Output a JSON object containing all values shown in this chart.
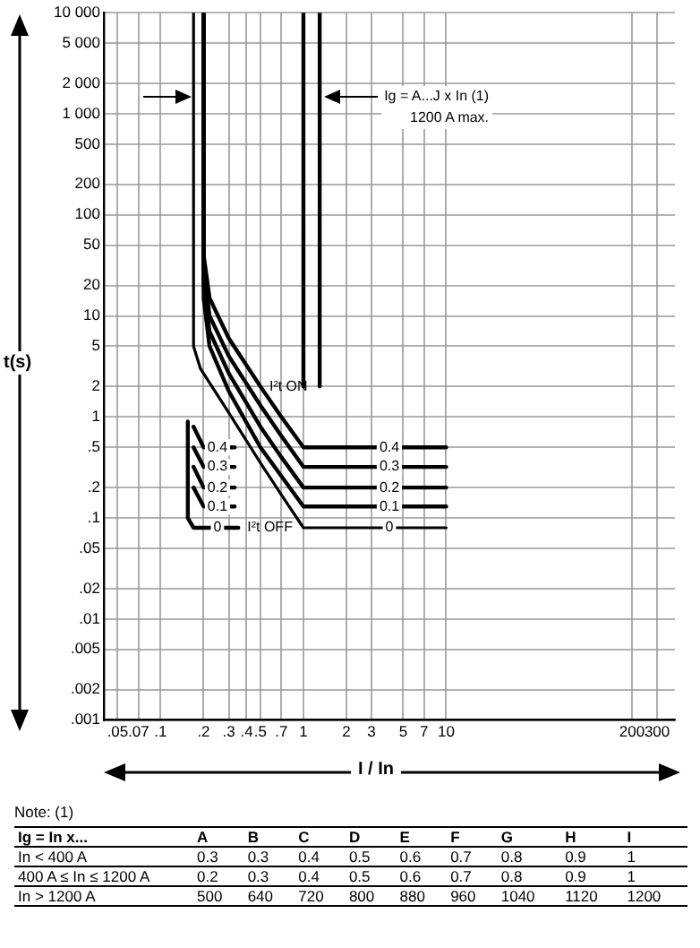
{
  "chart_data": {
    "type": "line",
    "xlabel": "I / In",
    "ylabel": "t(s)",
    "log": "xy",
    "grid": true,
    "legend": false,
    "marker": "none",
    "line_style": "solid",
    "xlim": [
      0.04,
      400
    ],
    "ylim": [
      0.001,
      10000
    ],
    "xticks": [
      {
        "value": 0.05,
        "label": ".05"
      },
      {
        "value": 0.07,
        "label": ".07"
      },
      {
        "value": 0.1,
        "label": ".1"
      },
      {
        "value": 0.2,
        "label": ".2"
      },
      {
        "value": 0.3,
        "label": ".3"
      },
      {
        "value": 0.4,
        "label": ".4"
      },
      {
        "value": 0.5,
        "label": ".5"
      },
      {
        "value": 0.7,
        "label": ".7"
      },
      1,
      2,
      3,
      5,
      7,
      10,
      200,
      300
    ],
    "yticks": [
      {
        "value": 0.001,
        "label": ".001"
      },
      {
        "value": 0.002,
        "label": ".002"
      },
      {
        "value": 0.005,
        "label": ".005"
      },
      {
        "value": 0.01,
        "label": ".01"
      },
      {
        "value": 0.02,
        "label": ".02"
      },
      {
        "value": 0.05,
        "label": ".05"
      },
      {
        "value": 0.1,
        "label": ".1"
      },
      {
        "value": 0.2,
        "label": ".2"
      },
      {
        "value": 0.5,
        "label": ".5"
      },
      1,
      2,
      5,
      10,
      20,
      50,
      100,
      200,
      500,
      {
        "value": 1000,
        "label": "1 000"
      },
      {
        "value": 2000,
        "label": "2 000"
      },
      {
        "value": 5000,
        "label": "5 000"
      },
      {
        "value": 10000,
        "label": "10 000"
      }
    ],
    "series": [
      {
        "color": "#000000",
        "x": [
          0.2,
          0.2,
          0.22,
          0.3,
          0.5,
          0.7,
          1,
          10
        ],
        "values": [
          10000,
          40,
          15,
          6,
          2,
          1,
          0.5,
          0.5
        ]
      },
      {
        "color": "#000000",
        "x": [
          0.2,
          0.2,
          0.22,
          0.3,
          0.5,
          0.7,
          1,
          10
        ],
        "values": [
          10000,
          30,
          10,
          4,
          1.3,
          0.65,
          0.32,
          0.32
        ]
      },
      {
        "color": "#000000",
        "x": [
          0.2,
          0.2,
          0.22,
          0.3,
          0.5,
          0.7,
          1,
          10
        ],
        "values": [
          10000,
          20,
          7,
          2.7,
          0.8,
          0.4,
          0.2,
          0.2
        ]
      },
      {
        "color": "#000000",
        "x": [
          0.2,
          0.2,
          0.22,
          0.3,
          0.5,
          0.7,
          1,
          10
        ],
        "values": [
          10000,
          15,
          5,
          1.8,
          0.5,
          0.26,
          0.13,
          0.13
        ]
      },
      {
        "color": "#000000",
        "x": [
          0.17,
          0.17,
          0.19,
          0.3,
          0.5,
          0.7,
          1,
          10
        ],
        "values": [
          10000,
          5,
          3,
          1.1,
          0.35,
          0.17,
          0.08,
          0.08
        ]
      },
      {
        "color": "#000000",
        "x": [
          1,
          1
        ],
        "values": [
          10000,
          2
        ]
      },
      {
        "color": "#000000",
        "x": [
          1.3,
          1.3
        ],
        "values": [
          10000,
          2
        ]
      },
      {
        "color": "#000000",
        "x": [
          0.17,
          0.2,
          0.33
        ],
        "values": [
          0.8,
          0.5,
          0.5
        ]
      },
      {
        "color": "#000000",
        "x": [
          0.17,
          0.2,
          0.33
        ],
        "values": [
          0.5,
          0.32,
          0.32
        ]
      },
      {
        "color": "#000000",
        "x": [
          0.17,
          0.2,
          0.33
        ],
        "values": [
          0.32,
          0.2,
          0.2
        ]
      },
      {
        "color": "#000000",
        "x": [
          0.17,
          0.2,
          0.33
        ],
        "values": [
          0.2,
          0.13,
          0.13
        ]
      },
      {
        "color": "#000000",
        "x": [
          0.155,
          0.155,
          0.17,
          0.35
        ],
        "values": [
          0.9,
          0.1,
          0.08,
          0.08
        ]
      }
    ],
    "annotations": [
      "Ig = A...J x In (1)",
      "1200 A max.",
      {
        "text": "I²t ON",
        "x": 0.5,
        "y": 2
      },
      {
        "text": "I²t OFF",
        "x": 0.35,
        "y": 0.08
      },
      {
        "text": "0.4",
        "x": 4,
        "y": 0.5
      },
      {
        "text": "0.3",
        "x": 4,
        "y": 0.32
      },
      {
        "text": "0.2",
        "x": 4,
        "y": 0.2
      },
      {
        "text": "0.1",
        "x": 4,
        "y": 0.13
      },
      {
        "text": "0",
        "x": 4,
        "y": 0.08
      },
      {
        "text": "0.4",
        "x": 0.25,
        "y": 0.5
      },
      {
        "text": "0.3",
        "x": 0.25,
        "y": 0.32
      },
      {
        "text": "0.2",
        "x": 0.25,
        "y": 0.2
      },
      {
        "text": "0.1",
        "x": 0.25,
        "y": 0.13
      },
      {
        "text": "0",
        "x": 0.25,
        "y": 0.08
      },
      "Note: (1)",
      "Ig = In x...\tA\tB\tC\tD\tE\tF\tG\tH\tI",
      "In < 400 A\t0.3\t0.3\t0.4\t0.5\t0.6\t0.7\t0.8\t0.9\t1",
      "400 A ≤ In ≤ 1200 A\t0.2\t0.3\t0.4\t0.5\t0.6\t0.7\t0.8\t0.9\t1",
      "In > 1200 A\t500\t640\t720\t800\t880\t960\t1040\t1120\t1200"
    ]
  }
}
